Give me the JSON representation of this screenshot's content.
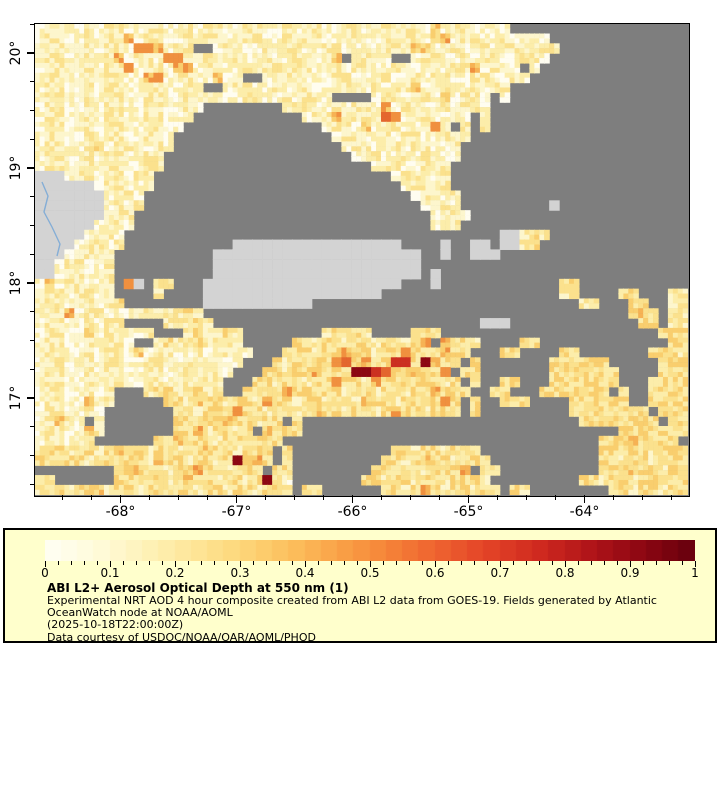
{
  "figure": {
    "background_color": "#ffffff",
    "frame_color": "#000000"
  },
  "map": {
    "nodata_color": "#7e7e7e",
    "land_color": "#d3d3d3",
    "river_color": "#85aed6",
    "palette": [
      "#fffdf0",
      "#fdf6cd",
      "#fcedaa",
      "#fbe18d",
      "#f9ce6e",
      "#f6b254",
      "#f0903f",
      "#e4662e",
      "#cc3021",
      "#8c0712"
    ],
    "x_axis": {
      "labels": [
        "-68°",
        "-67°",
        "-66°",
        "-65°",
        "-64°"
      ],
      "major_offsets": [
        85.5,
        201.5,
        317.5,
        433.5,
        549.5
      ],
      "minor_start": 27.5,
      "minor_step": 29,
      "minor_count": 22
    },
    "y_axis": {
      "labels": [
        "20°",
        "19°",
        "18°",
        "17°"
      ],
      "major_offsets": [
        29,
        144,
        259,
        374
      ],
      "minor_start": 0.25,
      "minor_step": 28.75,
      "minor_count": 17
    },
    "river_points": [
      [
        7,
        158
      ],
      [
        13,
        172
      ],
      [
        9,
        188
      ],
      [
        17,
        203
      ],
      [
        25,
        220
      ],
      [
        22,
        232
      ]
    ],
    "grid": [
      "122112122112211212211221121221122112122141221121..................",
      "1221121225122112122112211212211221121221451221121221.............",
      "1221121221665122..12211212211221121221441221121221122.............",
      "1221121251221661221121221122114 1221..12211212211221...............",
      "1221121226122155122112124122112122112211212251221 1................",
      "122112122115612211411..122112122112211212211221121.................",
      "12211212211221121..12211212211221121224122112122..................",
      "122112122112211212211221121221....122112141221 1...................",
      "12211212211221121........122112122151221121221....................",
      "1221121221122112...........12251221761221121 2.....................",
      "122112122112211..............1221412211261 2 2......................",
      "12211212211221................12211212211221......................",
      "12211241221121.................122112122112.......................",
      "1221121221122...................12211212211.......................",
      "1221121221122.....................12211212........................",
      "LLL122112122........................122112........................",
      "LLLLLL122112.........................12212........................",
      "LLLLLLL1221...........................12212.......................",
      "LLLLLLL1212............................1221.........L.............",
      "LLLLLLL122..............................1221......................",
      "LLLLLL1221..............................122.......................",
      "LLLLL1221......................................LL232..............",
      "LLLL12212...........LLLLLLLLLLLLLLLLL....L..LL.LL23...............",
      "LLL12211..........LLLLLLLLLLLLLLLLLLLLL..L..LLL...................",
      "LL122112..........LLLLLLLLLLLLLLLLLLLLL...........................",
      "LL122112..........LLLLLLLLLLLLLLLLLLLLL.L.........................",
      "14122112.6L.23...LLLLLLLLLLLLLLLLLLLL...L............23...........",
      "12212212....2....LLLLLLLLLLLLLLLLLL..................22....33...22",
      "122122123........LLLLLLLLLLL...........................22...33..22",
      "12251221112212232...........................................343.22",
      "122112122....23232...........................LLL.............33.22",
      "122114122112...232232........23332....233......................33322",
      "1221121221..232232232.....33233233233235 5332....33.............3322",
      "1221121221412211212211...3332335332336323533...33....33.......3332",
      "122112122112211212211...3233436745338839433 3.......333333.....3332",
      "12211212211221121221...3323353339987435336 33.......3333333....3332",
      "1221121221122112122...332332336332533433323 3..33...3333333...33332",
      "12211212...23323323..33235332332332332335333..33...3333433 3..33333",
      "12211522.....332433233253323323324332332363 3..333....333333..33333",
      "1221121.......33233253323323433233235332332 3.........33333333.3333",
      "12421 1.......33233533233 3............................33333333.3333",
      "1221142.......33523323 4333................................333333333",
      "122112......3342332332333................................33343333 3",
      "233233235332332334332333 3..........332332333............3323323332",
      "332332333332433233239353 3.........33234332333...........3323323332",
      "........334332335332332 33........3323323335 33..........33343323333",
      "33......332332343323323931.......3323323323332.........332332333233",
      "23323342332332332332332332 33......332353233233 32........3323323332332"
    ]
  },
  "legend": {
    "background_color": "#ffffcc",
    "colorbar": {
      "labels": [
        "0",
        "0.1",
        "0.2",
        "0.3",
        "0.4",
        "0.5",
        "0.6",
        "0.7",
        "0.8",
        "0.9",
        "1"
      ],
      "steps": 40,
      "stops": [
        [
          0,
          "#fffff4"
        ],
        [
          0.08,
          "#fffbda"
        ],
        [
          0.15,
          "#fef3bb"
        ],
        [
          0.22,
          "#fee79c"
        ],
        [
          0.3,
          "#fdd77b"
        ],
        [
          0.38,
          "#fcbf5c"
        ],
        [
          0.45,
          "#faa348"
        ],
        [
          0.52,
          "#f68739"
        ],
        [
          0.6,
          "#ef6430"
        ],
        [
          0.68,
          "#e34327"
        ],
        [
          0.76,
          "#d02a1f"
        ],
        [
          0.84,
          "#b01419"
        ],
        [
          0.92,
          "#8d0712"
        ],
        [
          1,
          "#66000d"
        ]
      ]
    },
    "title": "ABI L2+ Aerosol Optical Depth at 550 nm (1)",
    "desc_line1": "Experimental NRT AOD 4 hour composite created from ABI L2 data from GOES-19. Fields generated by Atlantic",
    "desc_line2": "OceanWatch node at NOAA/AOML",
    "timestamp": "(2025-10-18T22:00:00Z)",
    "courtesy": "Data courtesy of USDOC/NOAA/OAR/AOML/PHOD"
  }
}
